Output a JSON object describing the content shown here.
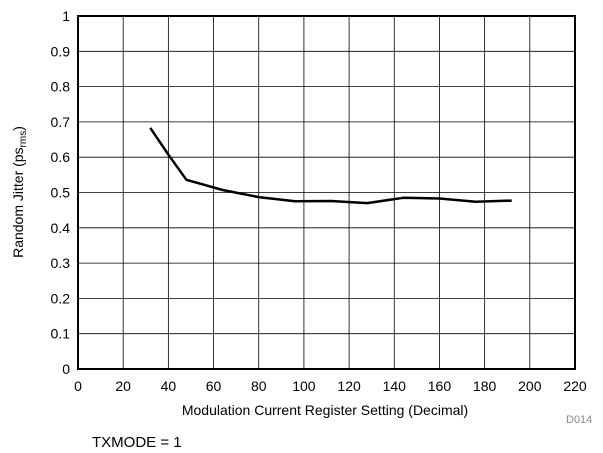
{
  "chart_data": {
    "type": "line",
    "xlabel": "Modulation Current Register Setting (Decimal)",
    "ylabel_main": "Random Jitter (ps",
    "ylabel_sub": "rms",
    "ylabel_close": ")",
    "xlim": [
      0,
      220
    ],
    "ylim": [
      0,
      1
    ],
    "xticks": [
      "0",
      "20",
      "40",
      "60",
      "80",
      "100",
      "120",
      "140",
      "160",
      "180",
      "200",
      "220"
    ],
    "yticks": [
      "0",
      "0.1",
      "0.2",
      "0.3",
      "0.4",
      "0.5",
      "0.6",
      "0.7",
      "0.8",
      "0.9",
      "1"
    ],
    "grid": true,
    "series": [
      {
        "x": [
          32,
          40,
          48,
          64,
          80,
          96,
          112,
          128,
          144,
          160,
          176,
          192
        ],
        "y": [
          0.683,
          0.607,
          0.536,
          0.507,
          0.487,
          0.475,
          0.476,
          0.47,
          0.485,
          0.483,
          0.474,
          0.477
        ],
        "color": "#000000"
      }
    ]
  },
  "figure_tag": "D014",
  "note": "TXMODE = 1"
}
